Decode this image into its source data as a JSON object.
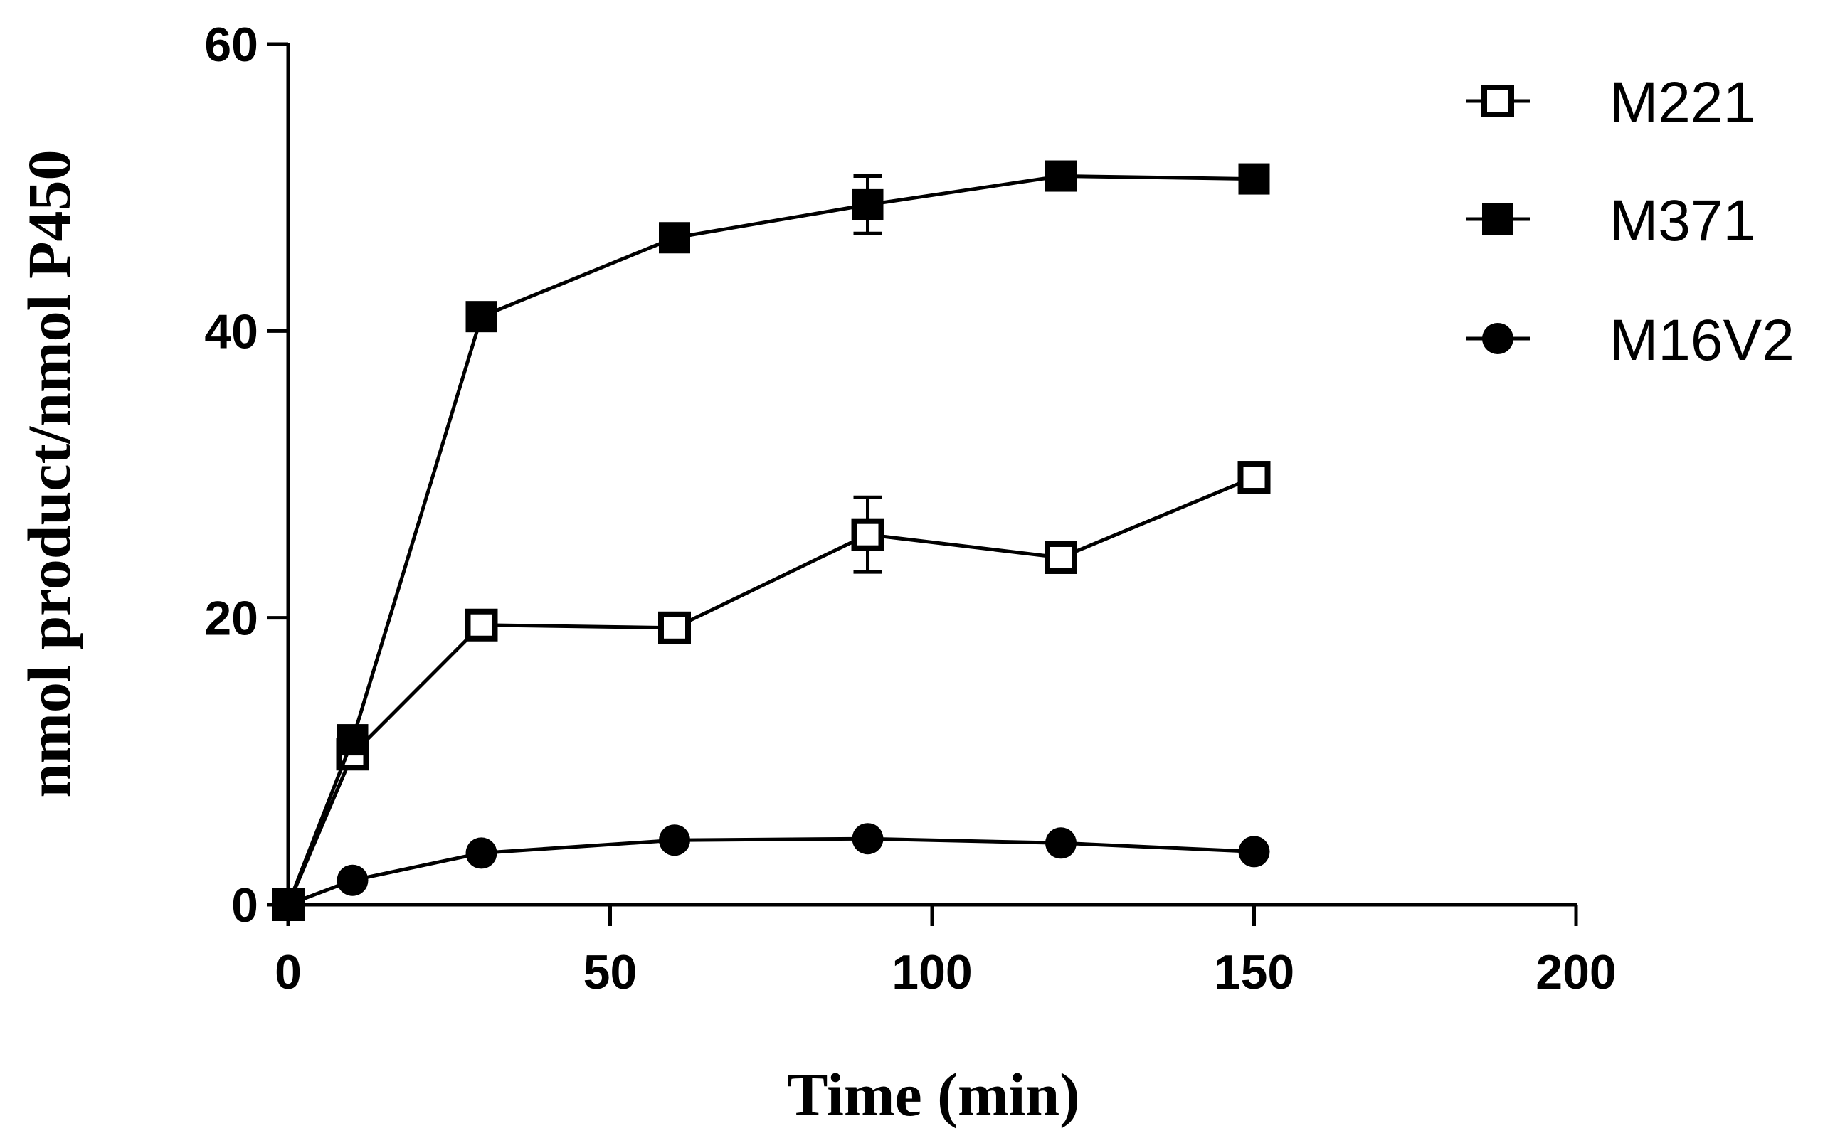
{
  "chart_data": {
    "type": "line",
    "title": "",
    "xlabel": "Time (min)",
    "ylabel": "nmol product/nmol P450",
    "xlim": [
      0,
      200
    ],
    "ylim": [
      0,
      60
    ],
    "xticks": [
      0,
      50,
      100,
      150,
      200
    ],
    "yticks": [
      0,
      20,
      40,
      60
    ],
    "x_tick_labels": [
      "0",
      "50",
      "100",
      "150",
      "200"
    ],
    "y_tick_labels": [
      "0",
      "20",
      "40",
      "60"
    ],
    "grid": false,
    "legend_position": "top-right",
    "series": [
      {
        "name": "M221",
        "marker": "open-square",
        "x": [
          0,
          10,
          30,
          60,
          90,
          120,
          150
        ],
        "values": [
          0,
          10.5,
          19.5,
          19.3,
          25.8,
          24.2,
          29.8
        ],
        "error": [
          0,
          0,
          0,
          0,
          2.6,
          0,
          0
        ]
      },
      {
        "name": "M371",
        "marker": "filled-square",
        "x": [
          0,
          10,
          30,
          60,
          90,
          120,
          150
        ],
        "values": [
          0,
          11.5,
          41.0,
          46.5,
          48.8,
          50.8,
          50.6
        ],
        "error": [
          0,
          0,
          0,
          0,
          2.0,
          0,
          0
        ]
      },
      {
        "name": "M16V2",
        "marker": "filled-circle",
        "x": [
          0,
          10,
          30,
          60,
          90,
          120,
          150
        ],
        "values": [
          0,
          1.7,
          3.6,
          4.5,
          4.6,
          4.3,
          3.7
        ],
        "error": [
          0,
          0,
          0,
          0,
          0,
          0,
          0
        ]
      }
    ]
  }
}
